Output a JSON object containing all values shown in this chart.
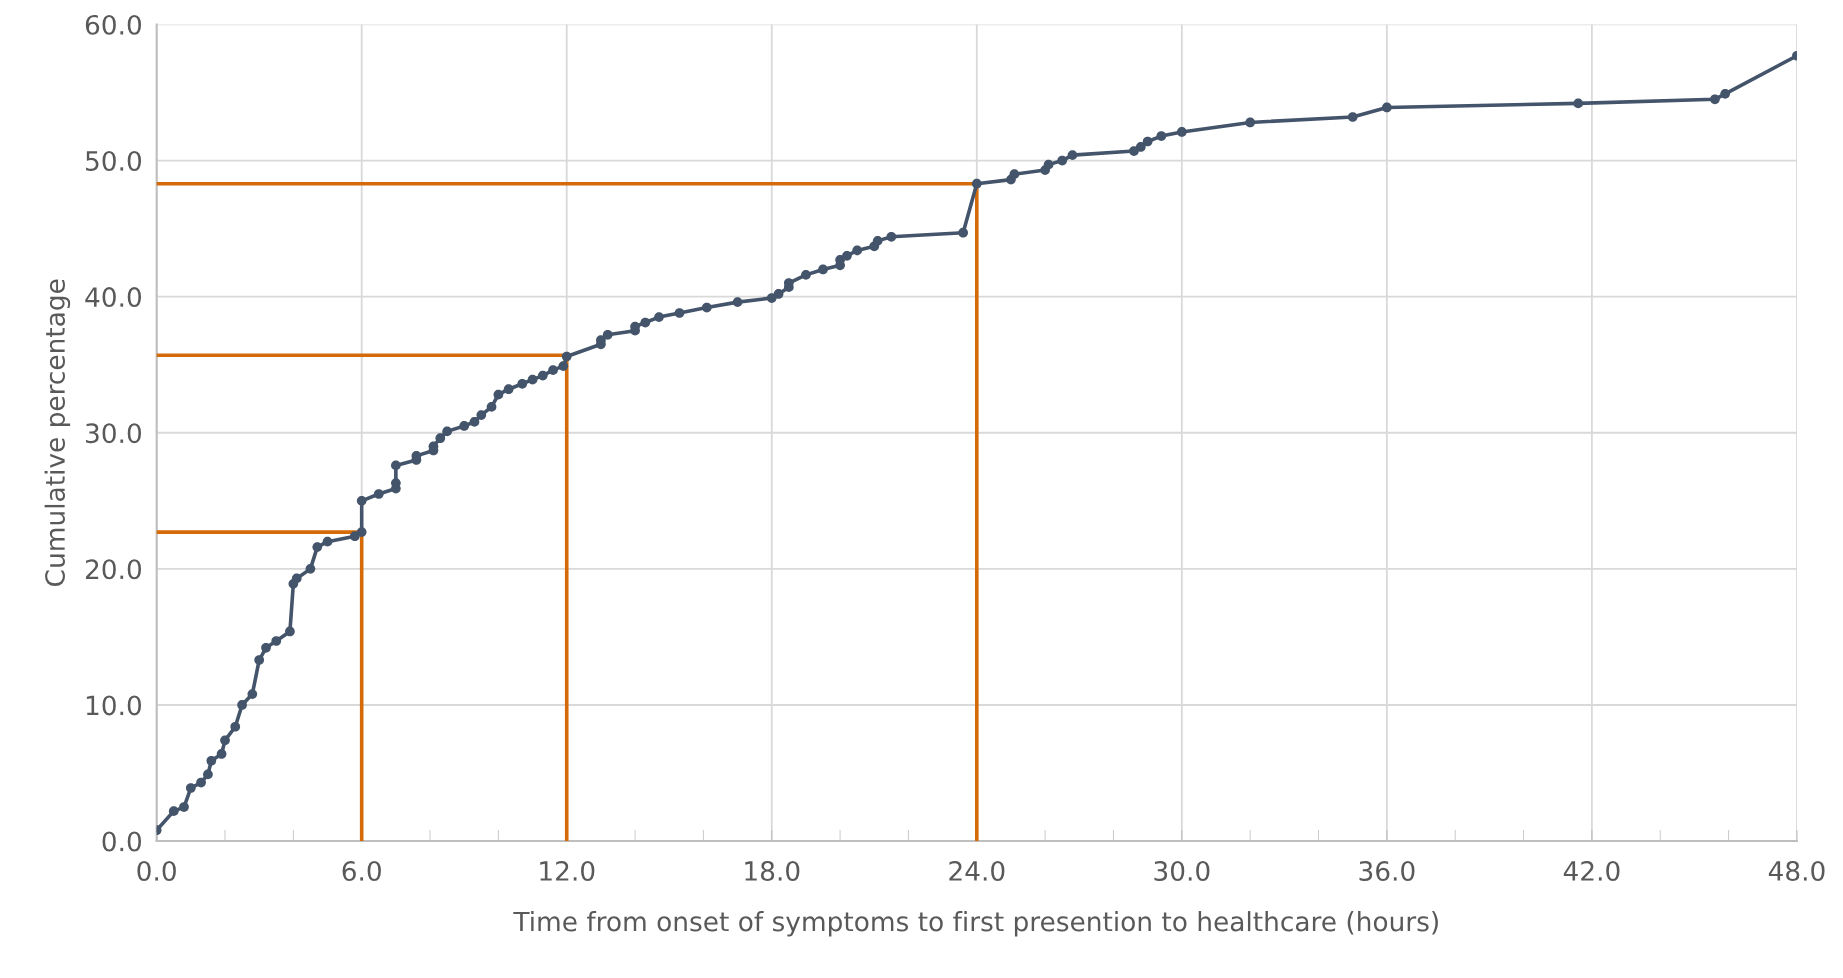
{
  "chart_data": {
    "type": "line",
    "xlabel": "Time from onset of symptoms to first presention to healthcare (hours)",
    "ylabel": "Cumulative percentage",
    "xlim": [
      0,
      48
    ],
    "ylim": [
      0,
      60
    ],
    "xticks": [
      {
        "value": 0,
        "label": "0.0"
      },
      {
        "value": 2,
        "label": null
      },
      {
        "value": 4,
        "label": null
      },
      {
        "value": 6,
        "label": "6.0"
      },
      {
        "value": 8,
        "label": null
      },
      {
        "value": 10,
        "label": null
      },
      {
        "value": 12,
        "label": "12.0"
      },
      {
        "value": 14,
        "label": null
      },
      {
        "value": 16,
        "label": null
      },
      {
        "value": 18,
        "label": "18.0"
      },
      {
        "value": 20,
        "label": null
      },
      {
        "value": 22,
        "label": null
      },
      {
        "value": 24,
        "label": "24.0"
      },
      {
        "value": 26,
        "label": null
      },
      {
        "value": 28,
        "label": null
      },
      {
        "value": 30,
        "label": "30.0"
      },
      {
        "value": 32,
        "label": null
      },
      {
        "value": 34,
        "label": null
      },
      {
        "value": 36,
        "label": "36.0"
      },
      {
        "value": 38,
        "label": null
      },
      {
        "value": 40,
        "label": null
      },
      {
        "value": 42,
        "label": "42.0"
      },
      {
        "value": 44,
        "label": null
      },
      {
        "value": 46,
        "label": null
      },
      {
        "value": 48,
        "label": "48.0"
      }
    ],
    "yticks": [
      {
        "value": 0,
        "label": "0.0"
      },
      {
        "value": 10,
        "label": "10.0"
      },
      {
        "value": 20,
        "label": "20.0"
      },
      {
        "value": 30,
        "label": "30.0"
      },
      {
        "value": 40,
        "label": "40.0"
      },
      {
        "value": 50,
        "label": "50.0"
      },
      {
        "value": 60,
        "label": "60.0"
      }
    ],
    "grid": true,
    "series": [
      {
        "color": "#d46b08",
        "marker": "none",
        "x": [
          0,
          6,
          6
        ],
        "values": [
          22.7,
          22.7,
          0
        ]
      },
      {
        "color": "#d46b08",
        "marker": "none",
        "x": [
          0,
          12,
          12
        ],
        "values": [
          35.7,
          35.7,
          0
        ]
      },
      {
        "color": "#d46b08",
        "marker": "none",
        "x": [
          0,
          24,
          24
        ],
        "values": [
          48.3,
          48.3,
          0
        ]
      },
      {
        "color": "#44546a",
        "marker": "circle",
        "x": [
          0,
          0.5,
          0.8,
          1.0,
          1.3,
          1.5,
          1.6,
          1.9,
          2.0,
          2.3,
          2.5,
          2.8,
          3.0,
          3.2,
          3.5,
          3.9,
          4.0,
          4.1,
          4.5,
          4.7,
          5.0,
          5.8,
          6.0,
          6.0,
          6.5,
          7.0,
          7.0,
          7.0,
          7.6,
          7.6,
          8.1,
          8.1,
          8.3,
          8.5,
          9.0,
          9.3,
          9.5,
          9.8,
          10.0,
          10.3,
          10.7,
          11.0,
          11.3,
          11.6,
          11.9,
          12.0,
          13.0,
          13.0,
          13.2,
          14.0,
          14.0,
          14.3,
          14.7,
          15.3,
          16.1,
          17.0,
          18.0,
          18.2,
          18.5,
          18.5,
          19.0,
          19.5,
          20.0,
          20.0,
          20.2,
          20.5,
          21.0,
          21.1,
          21.5,
          23.6,
          24.0,
          25.0,
          25.1,
          26.0,
          26.1,
          26.5,
          26.8,
          28.6,
          28.8,
          29.0,
          29.4,
          30.0,
          32.0,
          35.0,
          36.0,
          41.6,
          45.6,
          45.9,
          48.0
        ],
        "values": [
          0.8,
          2.2,
          2.5,
          3.9,
          4.3,
          4.9,
          5.9,
          6.4,
          7.4,
          8.4,
          10.0,
          10.8,
          13.3,
          14.2,
          14.7,
          15.4,
          18.9,
          19.3,
          20.0,
          21.6,
          22.0,
          22.4,
          22.7,
          25.0,
          25.5,
          25.9,
          26.3,
          27.6,
          28.0,
          28.3,
          28.7,
          29.0,
          29.6,
          30.1,
          30.5,
          30.8,
          31.3,
          31.9,
          32.8,
          33.2,
          33.6,
          33.9,
          34.2,
          34.6,
          34.9,
          35.6,
          36.5,
          36.8,
          37.2,
          37.5,
          37.8,
          38.1,
          38.5,
          38.8,
          39.2,
          39.6,
          39.9,
          40.2,
          40.7,
          41.0,
          41.6,
          42.0,
          42.3,
          42.7,
          43.0,
          43.4,
          43.7,
          44.1,
          44.4,
          44.7,
          48.3,
          48.6,
          49.0,
          49.3,
          49.7,
          50.0,
          50.4,
          50.7,
          51.0,
          51.4,
          51.8,
          52.1,
          52.8,
          53.2,
          53.9,
          54.2,
          54.5,
          54.9,
          57.7
        ]
      }
    ]
  }
}
